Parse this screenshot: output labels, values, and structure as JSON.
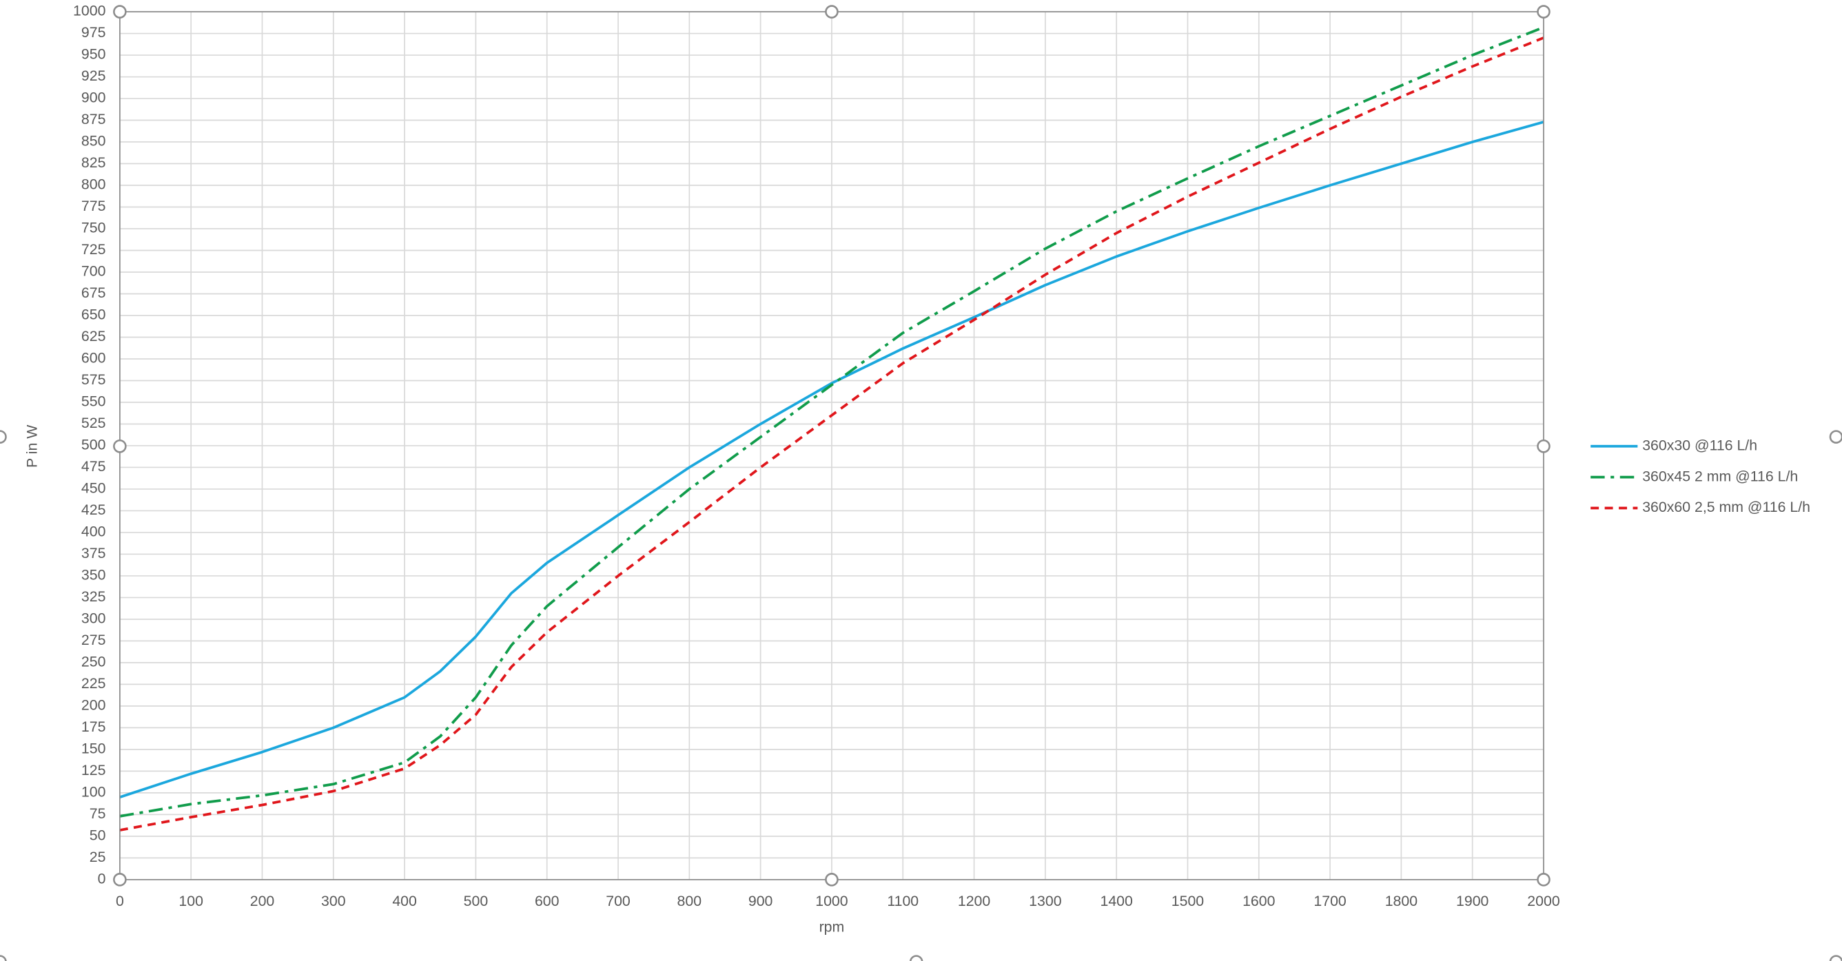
{
  "chart_data": {
    "type": "line",
    "x_label": "rpm",
    "y_label": "P in W",
    "x": [
      0,
      100,
      200,
      300,
      400,
      450,
      500,
      550,
      600,
      700,
      800,
      900,
      1000,
      1100,
      1200,
      1300,
      1400,
      1500,
      1600,
      1700,
      1800,
      1900,
      2000
    ],
    "series": [
      {
        "name": "360x30 @116 L/h",
        "color": "#1ba7dd",
        "dash": "solid",
        "values": [
          95,
          122,
          147,
          175,
          210,
          240,
          280,
          330,
          365,
          420,
          475,
          525,
          572,
          612,
          648,
          685,
          718,
          747,
          774,
          800,
          825,
          850,
          873
        ]
      },
      {
        "name": "360x45 2 mm @116 L/h",
        "color": "#109c4b",
        "dash": "dashdot",
        "values": [
          73,
          87,
          97,
          110,
          135,
          165,
          210,
          270,
          315,
          383,
          450,
          510,
          570,
          630,
          678,
          727,
          770,
          808,
          845,
          880,
          915,
          950,
          982
        ]
      },
      {
        "name": "360x60 2,5 mm @116 L/h",
        "color": "#e0161b",
        "dash": "dash",
        "values": [
          57,
          72,
          86,
          102,
          128,
          155,
          190,
          245,
          285,
          350,
          412,
          475,
          535,
          595,
          645,
          697,
          745,
          787,
          826,
          865,
          902,
          937,
          970
        ]
      }
    ],
    "xlim": [
      0,
      2000
    ],
    "xticks": [
      0,
      100,
      200,
      300,
      400,
      500,
      600,
      700,
      800,
      900,
      1000,
      1100,
      1200,
      1300,
      1400,
      1500,
      1600,
      1700,
      1800,
      1900,
      2000
    ],
    "ylim": [
      0,
      1000
    ],
    "yticks": [
      0,
      25,
      50,
      75,
      100,
      125,
      150,
      175,
      200,
      225,
      250,
      275,
      300,
      325,
      350,
      375,
      400,
      425,
      450,
      475,
      500,
      525,
      550,
      575,
      600,
      625,
      650,
      675,
      700,
      725,
      750,
      775,
      800,
      825,
      850,
      875,
      900,
      925,
      950,
      975,
      1000
    ],
    "grid": true,
    "legend": "right"
  }
}
